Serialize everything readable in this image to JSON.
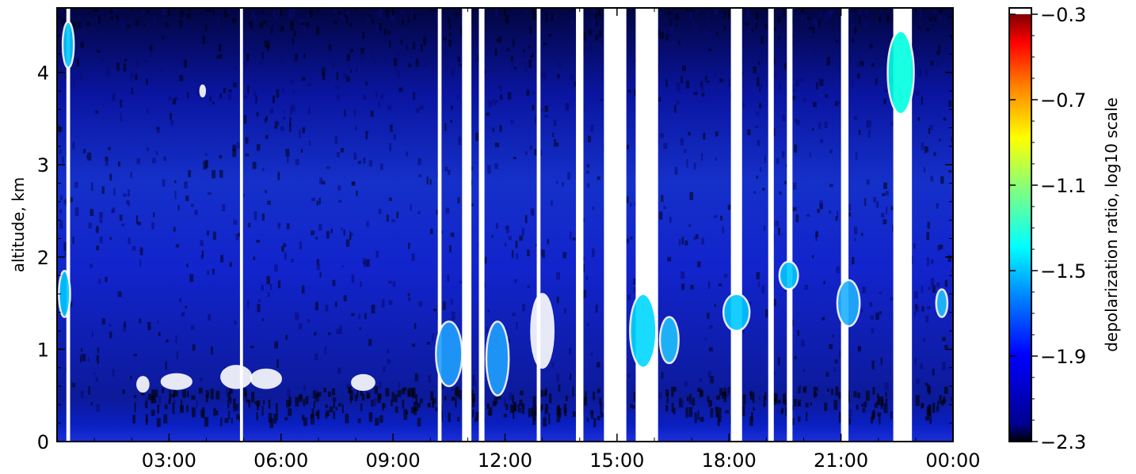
{
  "chart_data": {
    "type": "heatmap",
    "title": "",
    "xlabel": "",
    "ylabel": "altitude, km",
    "x_tick_labels": [
      "03:00",
      "06:00",
      "09:00",
      "12:00",
      "15:00",
      "18:00",
      "21:00",
      "00:00"
    ],
    "x_tick_hours": [
      3,
      6,
      9,
      12,
      15,
      18,
      21,
      24
    ],
    "xlim_hours": [
      0,
      24
    ],
    "y_tick_labels": [
      "0",
      "1",
      "2",
      "3",
      "4"
    ],
    "y_ticks": [
      0,
      1,
      2,
      3,
      4
    ],
    "ylim": [
      0,
      4.7
    ],
    "colorbar": {
      "label": "depolarization ratio, log10 scale",
      "tick_labels": [
        "−0.3",
        "−0.7",
        "−1.1",
        "−1.5",
        "−1.9",
        "−2.3"
      ],
      "ticks": [
        -0.3,
        -0.7,
        -1.1,
        -1.5,
        -1.9,
        -2.3
      ],
      "range": [
        -2.3,
        -0.3
      ],
      "colormap": [
        "#000000",
        "#00008f",
        "#0000ff",
        "#0080ff",
        "#00ffff",
        "#80ff80",
        "#ffff00",
        "#ff8000",
        "#ff0000",
        "#800000"
      ]
    },
    "background_value_estimate": -2.2,
    "missing_data_color": "#ffffff",
    "white_vertical_gaps_hours": [
      {
        "start": 0.25,
        "end": 0.35,
        "ymax": 4.7
      },
      {
        "start": 4.9,
        "end": 4.98,
        "ymax": 4.7
      },
      {
        "start": 10.2,
        "end": 10.3,
        "ymax": 4.7
      },
      {
        "start": 10.85,
        "end": 11.1,
        "ymax": 4.7
      },
      {
        "start": 11.3,
        "end": 11.45,
        "ymax": 4.7
      },
      {
        "start": 12.85,
        "end": 12.95,
        "ymax": 4.7
      },
      {
        "start": 13.9,
        "end": 14.1,
        "ymax": 4.7
      },
      {
        "start": 14.65,
        "end": 15.25,
        "ymax": 4.7
      },
      {
        "start": 15.5,
        "end": 16.1,
        "ymax": 4.7
      },
      {
        "start": 18.05,
        "end": 18.35,
        "ymax": 4.7
      },
      {
        "start": 19.05,
        "end": 19.2,
        "ymax": 4.7
      },
      {
        "start": 19.55,
        "end": 19.7,
        "ymax": 4.7
      },
      {
        "start": 21.0,
        "end": 21.2,
        "ymax": 4.7
      },
      {
        "start": 22.4,
        "end": 22.9,
        "ymax": 4.7
      }
    ]
  }
}
